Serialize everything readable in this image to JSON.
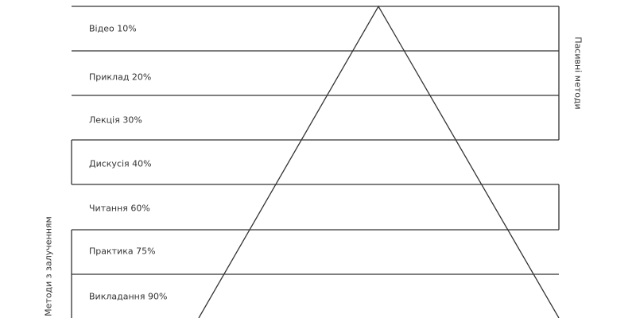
{
  "levels": [
    {
      "label": "Відео 10%"
    },
    {
      "label": "Приклад 20%"
    },
    {
      "label": "Лекція 30%"
    },
    {
      "label": "Дискусія 40%"
    },
    {
      "label": "Читання 60%"
    },
    {
      "label": "Практика 75%"
    },
    {
      "label": "Викладання 90%"
    }
  ],
  "side_labels": {
    "passive": "Пасивні методи",
    "active": "Методи з залученням"
  },
  "colors": {
    "line": "#333333",
    "text": "#333333"
  }
}
